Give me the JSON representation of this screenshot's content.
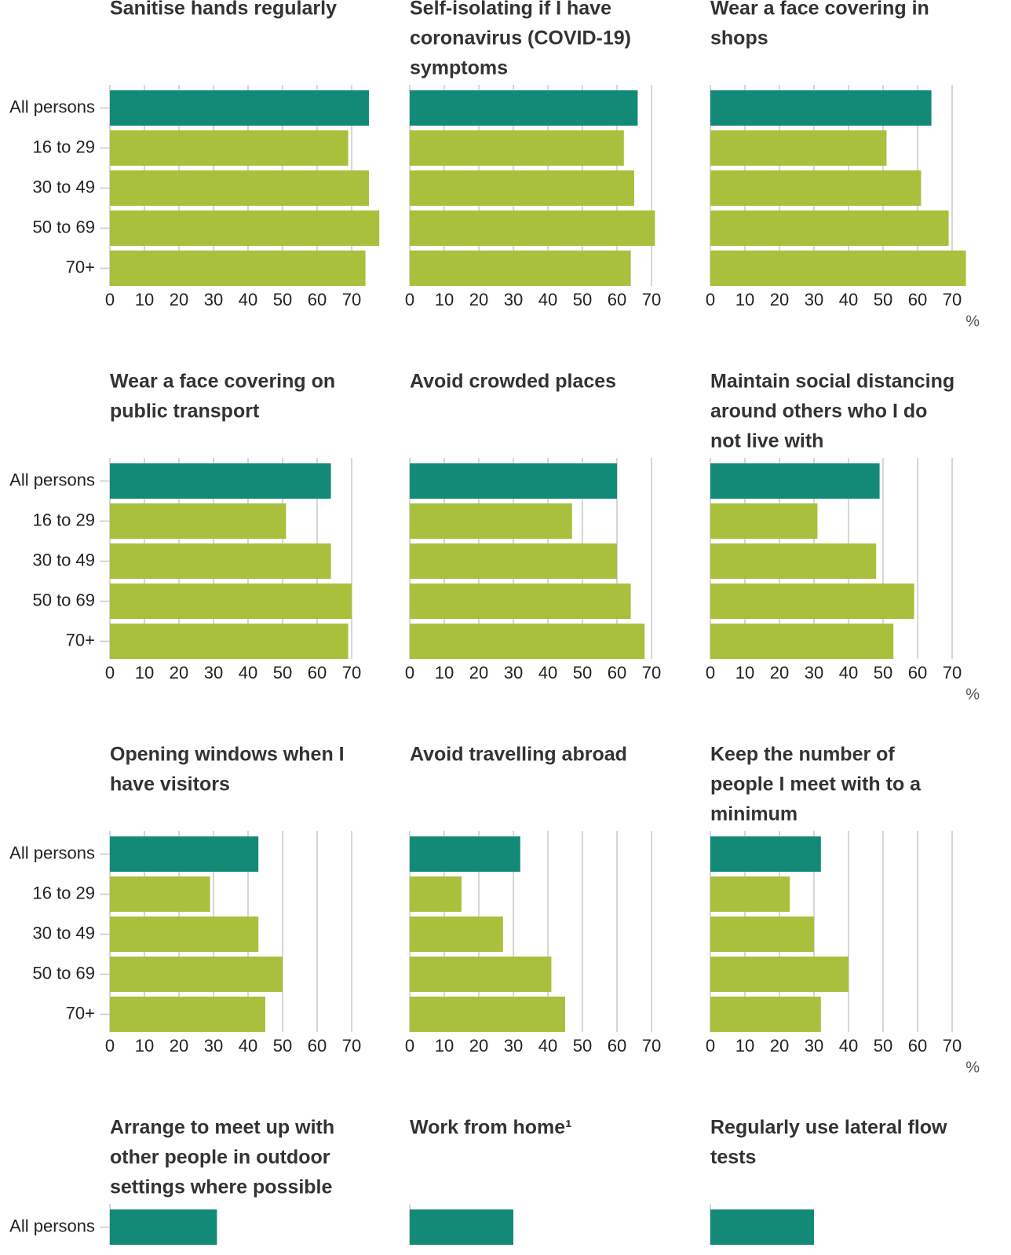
{
  "chart_data": [
    {
      "type": "bar",
      "title": [
        "Sanitise hands regularly"
      ],
      "categories": [
        "All persons",
        "16 to 29",
        "30 to 49",
        "50 to 69",
        "70+"
      ],
      "values": [
        75,
        69,
        75,
        78,
        74
      ],
      "colors": [
        "#138a78",
        "#a8c03c",
        "#a8c03c",
        "#a8c03c",
        "#a8c03c"
      ],
      "xlim": [
        0,
        78
      ],
      "xticks": [
        0,
        10,
        20,
        30,
        40,
        50,
        60,
        70
      ],
      "grid": true
    },
    {
      "type": "bar",
      "title": [
        "Self-isolating if I have",
        "coronavirus (COVID-19)",
        "symptoms"
      ],
      "values": [
        66,
        62,
        65,
        71,
        64
      ],
      "colors": [
        "#138a78",
        "#a8c03c",
        "#a8c03c",
        "#a8c03c",
        "#a8c03c"
      ],
      "xlim": [
        0,
        78
      ],
      "xticks": [
        0,
        10,
        20,
        30,
        40,
        50,
        60,
        70
      ],
      "grid": true
    },
    {
      "type": "bar",
      "title": [
        "Wear a face covering in",
        "shops"
      ],
      "values": [
        64,
        51,
        61,
        69,
        74
      ],
      "colors": [
        "#138a78",
        "#a8c03c",
        "#a8c03c",
        "#a8c03c",
        "#a8c03c"
      ],
      "xlim": [
        0,
        78
      ],
      "xticks": [
        0,
        10,
        20,
        30,
        40,
        50,
        60,
        70
      ],
      "grid": true,
      "unit_label": "%"
    },
    {
      "type": "bar",
      "title": [
        "Wear a face covering on",
        "public transport"
      ],
      "categories": [
        "All persons",
        "16 to 29",
        "30 to 49",
        "50 to 69",
        "70+"
      ],
      "values": [
        64,
        51,
        64,
        70,
        69
      ],
      "colors": [
        "#138a78",
        "#a8c03c",
        "#a8c03c",
        "#a8c03c",
        "#a8c03c"
      ],
      "xlim": [
        0,
        78
      ],
      "xticks": [
        0,
        10,
        20,
        30,
        40,
        50,
        60,
        70
      ],
      "grid": true
    },
    {
      "type": "bar",
      "title": [
        "Avoid crowded places"
      ],
      "values": [
        60,
        47,
        60,
        64,
        68
      ],
      "colors": [
        "#138a78",
        "#a8c03c",
        "#a8c03c",
        "#a8c03c",
        "#a8c03c"
      ],
      "xlim": [
        0,
        78
      ],
      "xticks": [
        0,
        10,
        20,
        30,
        40,
        50,
        60,
        70
      ],
      "grid": true
    },
    {
      "type": "bar",
      "title": [
        "Maintain social distancing",
        "around others who I do",
        "not live with"
      ],
      "values": [
        49,
        31,
        48,
        59,
        53
      ],
      "colors": [
        "#138a78",
        "#a8c03c",
        "#a8c03c",
        "#a8c03c",
        "#a8c03c"
      ],
      "xlim": [
        0,
        78
      ],
      "xticks": [
        0,
        10,
        20,
        30,
        40,
        50,
        60,
        70
      ],
      "grid": true,
      "unit_label": "%"
    },
    {
      "type": "bar",
      "title": [
        "Opening windows when I",
        "have visitors"
      ],
      "categories": [
        "All persons",
        "16 to 29",
        "30 to 49",
        "50 to 69",
        "70+"
      ],
      "values": [
        43,
        29,
        43,
        50,
        45
      ],
      "colors": [
        "#138a78",
        "#a8c03c",
        "#a8c03c",
        "#a8c03c",
        "#a8c03c"
      ],
      "xlim": [
        0,
        78
      ],
      "xticks": [
        0,
        10,
        20,
        30,
        40,
        50,
        60,
        70
      ],
      "grid": true
    },
    {
      "type": "bar",
      "title": [
        "Avoid travelling abroad"
      ],
      "values": [
        32,
        15,
        27,
        41,
        45
      ],
      "colors": [
        "#138a78",
        "#a8c03c",
        "#a8c03c",
        "#a8c03c",
        "#a8c03c"
      ],
      "xlim": [
        0,
        78
      ],
      "xticks": [
        0,
        10,
        20,
        30,
        40,
        50,
        60,
        70
      ],
      "grid": true
    },
    {
      "type": "bar",
      "title": [
        "Keep the number of",
        "people I meet with to a",
        "minimum"
      ],
      "values": [
        32,
        23,
        30,
        40,
        32
      ],
      "colors": [
        "#138a78",
        "#a8c03c",
        "#a8c03c",
        "#a8c03c",
        "#a8c03c"
      ],
      "xlim": [
        0,
        78
      ],
      "xticks": [
        0,
        10,
        20,
        30,
        40,
        50,
        60,
        70
      ],
      "grid": true,
      "unit_label": "%"
    },
    {
      "type": "bar",
      "title": [
        "Arrange to meet up with",
        "other people in outdoor",
        "settings where possible"
      ],
      "categories": [
        "All persons"
      ],
      "values": [
        31
      ],
      "colors": [
        "#138a78"
      ],
      "xlim": [
        0,
        78
      ],
      "grid": true
    },
    {
      "type": "bar",
      "title": [
        "Work from home¹"
      ],
      "values": [
        30
      ],
      "colors": [
        "#138a78"
      ],
      "xlim": [
        0,
        78
      ],
      "grid": true
    },
    {
      "type": "bar",
      "title": [
        "Regularly use lateral flow",
        "tests"
      ],
      "values": [
        30
      ],
      "colors": [
        "#138a78"
      ],
      "xlim": [
        0,
        78
      ],
      "grid": true
    }
  ]
}
